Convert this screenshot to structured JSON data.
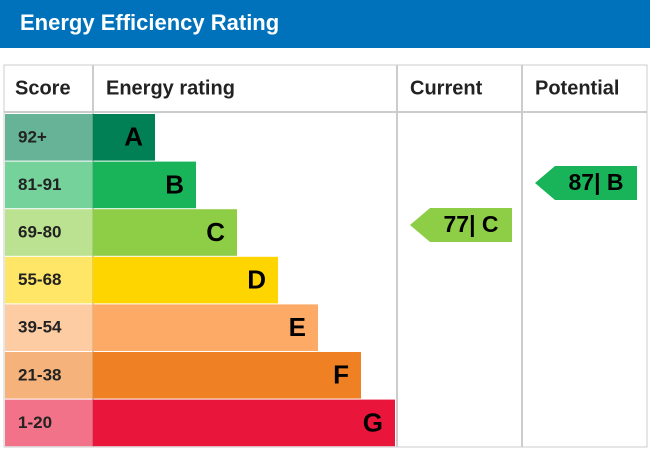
{
  "header": {
    "title": "Energy Efficiency Rating"
  },
  "table": {
    "columns": [
      "Score",
      "Energy rating",
      "Current",
      "Potential"
    ],
    "bands": [
      {
        "score": "92+",
        "rating": "A",
        "color": "#008054"
      },
      {
        "score": "81-91",
        "rating": "B",
        "color": "#19b459"
      },
      {
        "score": "69-80",
        "rating": "C",
        "color": "#8dce46"
      },
      {
        "score": "55-68",
        "rating": "D",
        "color": "#ffd500"
      },
      {
        "score": "39-54",
        "rating": "E",
        "color": "#fcaa65"
      },
      {
        "score": "21-38",
        "rating": "F",
        "color": "#ef8023"
      },
      {
        "score": "1-20",
        "rating": "G",
        "color": "#e9153b"
      }
    ],
    "current": {
      "label": "77| C",
      "color": "#8dce46"
    },
    "potential": {
      "label": "87| B",
      "color": "#19b459"
    }
  }
}
